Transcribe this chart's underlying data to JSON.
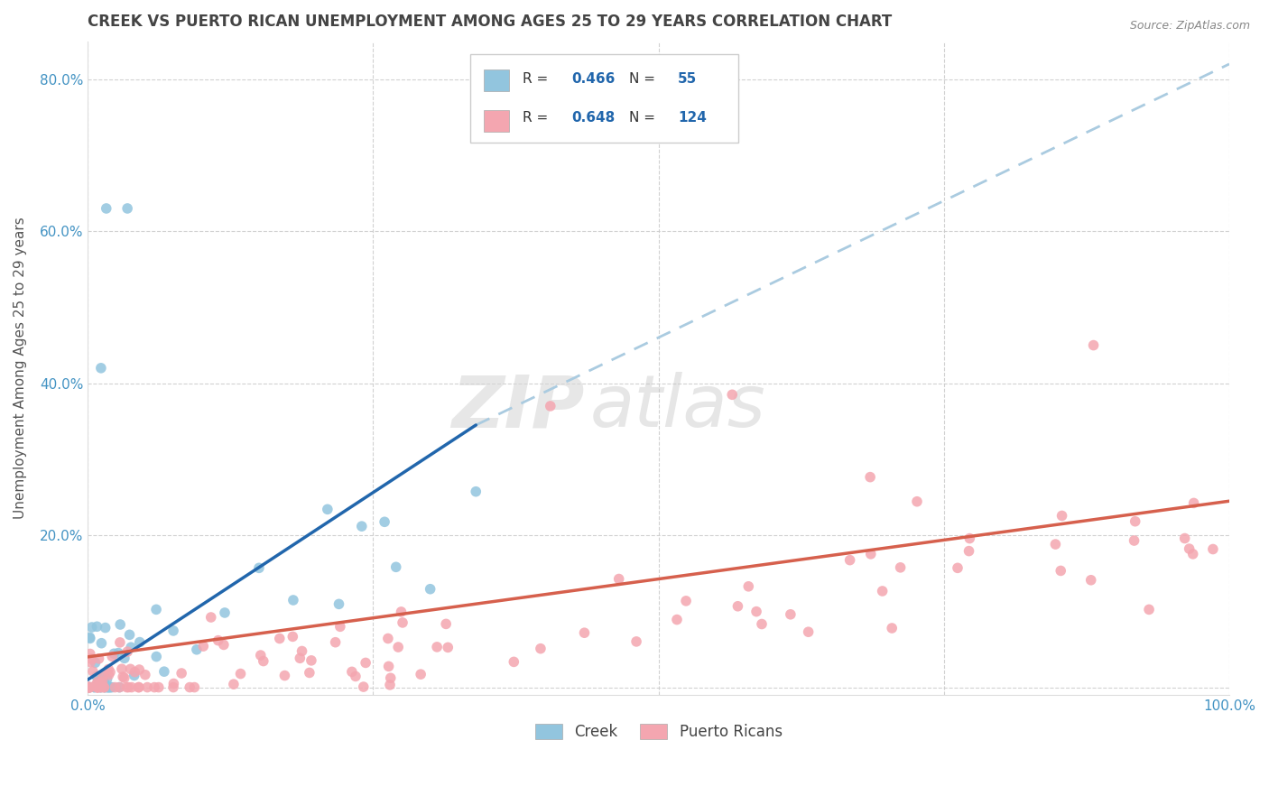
{
  "title": "CREEK VS PUERTO RICAN UNEMPLOYMENT AMONG AGES 25 TO 29 YEARS CORRELATION CHART",
  "source": "Source: ZipAtlas.com",
  "ylabel": "Unemployment Among Ages 25 to 29 years",
  "xlim": [
    0,
    1.0
  ],
  "ylim": [
    -0.01,
    0.85
  ],
  "xtick_positions": [
    0.0,
    0.25,
    0.5,
    0.75,
    1.0
  ],
  "xtick_labels": [
    "0.0%",
    "",
    "",
    "",
    "100.0%"
  ],
  "ytick_positions": [
    0.0,
    0.2,
    0.4,
    0.6,
    0.8
  ],
  "ytick_labels": [
    "",
    "20.0%",
    "40.0%",
    "60.0%",
    "80.0%"
  ],
  "creek_color": "#92c5de",
  "puerto_rican_color": "#f4a6b0",
  "creek_line_color": "#2166ac",
  "puerto_rican_line_color": "#d6604d",
  "creek_dashed_color": "#aacbe0",
  "R_creek": "0.466",
  "N_creek": "55",
  "R_puerto": "0.648",
  "N_puerto": "124",
  "watermark_zip": "ZIP",
  "watermark_atlas": "atlas",
  "background_color": "#ffffff",
  "grid_color": "#cccccc",
  "tick_color": "#4393c3",
  "title_color": "#444444",
  "creek_line_start_x": 0.0,
  "creek_line_start_y": 0.01,
  "creek_line_solid_end_x": 0.34,
  "creek_line_solid_end_y": 0.345,
  "creek_line_dash_end_x": 1.0,
  "creek_line_dash_end_y": 0.82,
  "puerto_line_start_x": 0.0,
  "puerto_line_start_y": 0.04,
  "puerto_line_end_x": 1.0,
  "puerto_line_end_y": 0.245
}
